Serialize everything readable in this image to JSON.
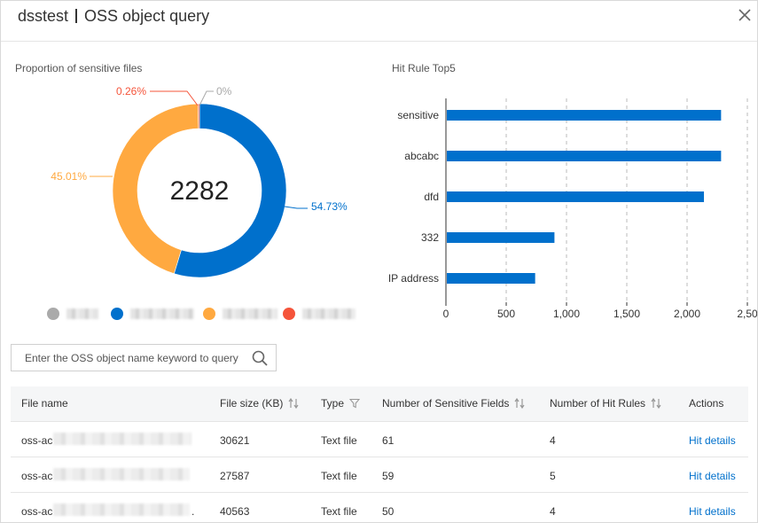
{
  "header": {
    "app": "dsstest",
    "title": "OSS object query"
  },
  "donut": {
    "title": "Proportion of sensitive files",
    "total": "2282",
    "labels": {
      "blue": "54.73%",
      "orange": "45.01%",
      "red": "0.26%",
      "gray": "0%"
    },
    "colors": {
      "blue": "#0070cc",
      "orange": "#ffa940",
      "red": "#f5543a",
      "gray": "#aaaaaa"
    }
  },
  "chart_data": {
    "type": "bar",
    "title": "Hit Rule Top5",
    "categories": [
      "sensitive",
      "abcabc",
      "dfd",
      "332",
      "IP address"
    ],
    "values": [
      2282,
      2282,
      2140,
      900,
      740
    ],
    "xlim": [
      0,
      2500
    ],
    "ticks": [
      "0",
      "500",
      "1,000",
      "1,500",
      "2,000",
      "2,50"
    ],
    "grid": true,
    "color": "#0070cc"
  },
  "search": {
    "placeholder": "Enter the OSS object name keyword to query"
  },
  "table": {
    "headers": {
      "file_name": "File name",
      "file_size": "File size (KB)",
      "type": "Type",
      "sensitive_fields": "Number of Sensitive Fields",
      "hit_rules": "Number of Hit Rules",
      "actions": "Actions"
    },
    "rows": [
      {
        "name_prefix": "oss-ac",
        "size": "30621",
        "type": "Text file",
        "fields": "61",
        "rules": "4",
        "action": "Hit details"
      },
      {
        "name_prefix": "oss-ac",
        "size": "27587",
        "type": "Text file",
        "fields": "59",
        "rules": "5",
        "action": "Hit details"
      },
      {
        "name_prefix": "oss-ac",
        "name_suffix": ".",
        "size": "40563",
        "type": "Text file",
        "fields": "50",
        "rules": "4",
        "action": "Hit details"
      }
    ]
  }
}
